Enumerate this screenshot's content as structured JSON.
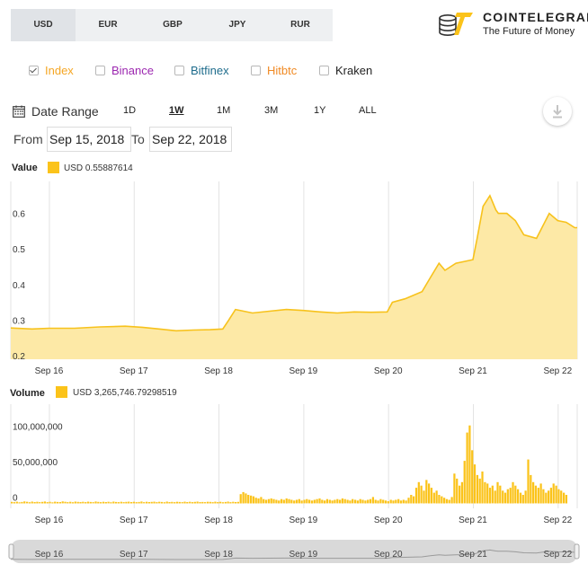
{
  "currency_tabs": [
    {
      "label": "USD",
      "active": true
    },
    {
      "label": "EUR",
      "active": false
    },
    {
      "label": "GBP",
      "active": false
    },
    {
      "label": "JPY",
      "active": false
    },
    {
      "label": "RUR",
      "active": false
    }
  ],
  "brand": {
    "name": "COINTELEGRAPH",
    "tagline": "The Future of Money"
  },
  "exchanges": [
    {
      "label": "Index",
      "checked": true,
      "color": "#f5a623"
    },
    {
      "label": "Binance",
      "checked": false,
      "color": "#9c27b0"
    },
    {
      "label": "Bitfinex",
      "checked": false,
      "color": "#1e6c8c"
    },
    {
      "label": "Hitbtc",
      "checked": false,
      "color": "#f08a24"
    },
    {
      "label": "Kraken",
      "checked": false,
      "color": "#222222"
    }
  ],
  "date_range": {
    "label": "Date Range",
    "buttons": [
      {
        "label": "1D",
        "active": false
      },
      {
        "label": "1W",
        "active": true
      },
      {
        "label": "1M",
        "active": false
      },
      {
        "label": "3M",
        "active": false
      },
      {
        "label": "1Y",
        "active": false
      },
      {
        "label": "ALL",
        "active": false
      }
    ],
    "from_label": "From",
    "from_value": "Sep 15, 2018",
    "to_label": "To",
    "to_value": "Sep 22, 2018"
  },
  "colors": {
    "accent": "#fbc31a",
    "area_fill": "#fde9a6",
    "line": "#f7c21c",
    "grid": "#e3e3e3"
  },
  "chart_data": [
    {
      "type": "area",
      "legend_title": "Value",
      "legend_text": "USD  0.55887614",
      "x_ticks": [
        "Sep 16",
        "Sep 17",
        "Sep 18",
        "Sep 19",
        "Sep 20",
        "Sep 21",
        "Sep 22"
      ],
      "x_tick_pos": [
        1,
        2,
        3,
        4,
        5,
        6,
        7
      ],
      "y_ticks": [
        "0.2",
        "0.3",
        "0.4",
        "0.5",
        "0.6"
      ],
      "y_tick_vals": [
        0.2,
        0.3,
        0.4,
        0.5,
        0.6
      ],
      "ylim": [
        0.19,
        0.69
      ],
      "xlim": [
        0.55,
        7.23
      ],
      "x": [
        0.55,
        0.8,
        1.0,
        1.3,
        1.6,
        1.9,
        2.1,
        2.3,
        2.5,
        2.7,
        2.9,
        3.05,
        3.12,
        3.2,
        3.4,
        3.6,
        3.8,
        4.0,
        4.2,
        4.4,
        4.6,
        4.8,
        4.99,
        5.05,
        5.2,
        5.4,
        5.5,
        5.6,
        5.67,
        5.8,
        5.9,
        6.0,
        6.05,
        6.12,
        6.2,
        6.27,
        6.3,
        6.4,
        6.5,
        6.6,
        6.75,
        6.9,
        7.0,
        7.1,
        7.2,
        7.23
      ],
      "y": [
        0.278,
        0.275,
        0.277,
        0.277,
        0.281,
        0.283,
        0.28,
        0.275,
        0.27,
        0.272,
        0.273,
        0.275,
        0.3,
        0.33,
        0.32,
        0.325,
        0.33,
        0.327,
        0.323,
        0.32,
        0.323,
        0.322,
        0.323,
        0.35,
        0.36,
        0.38,
        0.42,
        0.46,
        0.44,
        0.46,
        0.465,
        0.47,
        0.53,
        0.62,
        0.65,
        0.61,
        0.6,
        0.6,
        0.58,
        0.54,
        0.53,
        0.6,
        0.58,
        0.575,
        0.56,
        0.56
      ]
    },
    {
      "type": "bar",
      "legend_title": "Volume",
      "legend_text": "USD  3,265,746.79298519",
      "x_ticks": [
        "Sep 16",
        "Sep 17",
        "Sep 18",
        "Sep 19",
        "Sep 20",
        "Sep 21",
        "Sep 22"
      ],
      "x_tick_pos": [
        1,
        2,
        3,
        4,
        5,
        6,
        7
      ],
      "y_ticks": [
        "0",
        "50,000,000",
        "100,000,000"
      ],
      "y_tick_vals": [
        0,
        50000000,
        100000000
      ],
      "ylim": [
        -7000000,
        140000000
      ],
      "xlim": [
        0.55,
        7.23
      ],
      "x_start": 0.55,
      "x_step": 0.03,
      "values": [
        2.1,
        1.8,
        2.4,
        1.5,
        2.0,
        2.8,
        2.2,
        1.6,
        2.5,
        1.9,
        2.3,
        1.7,
        2.1,
        2.6,
        1.8,
        2.2,
        1.5,
        2.4,
        2.0,
        1.9,
        2.7,
        2.2,
        1.8,
        2.3,
        1.6,
        2.5,
        2.1,
        1.9,
        2.2,
        1.8,
        2.4,
        2.0,
        1.7,
        2.6,
        2.1,
        1.8,
        2.3,
        1.9,
        2.2,
        1.6,
        2.5,
        2.0,
        1.8,
        2.3,
        1.7,
        2.1,
        2.4,
        1.9,
        2.2,
        1.8,
        2.0,
        2.6,
        1.7,
        2.3,
        1.9,
        2.1,
        2.4,
        1.8,
        2.2,
        2.0,
        1.6,
        2.5,
        1.9,
        2.1,
        1.8,
        2.3,
        2.0,
        1.7,
        2.4,
        1.9,
        2.2,
        1.8,
        2.1,
        2.5,
        1.9,
        2.0,
        1.7,
        2.3,
        2.1,
        1.8,
        2.4,
        1.9,
        2.2,
        1.6,
        2.0,
        2.5,
        1.8,
        2.2,
        1.9,
        2.1,
        13,
        16,
        14,
        12,
        11,
        10,
        8,
        7,
        9,
        6,
        5,
        6,
        7,
        6,
        5,
        4,
        6,
        5,
        7,
        6,
        5,
        4,
        5,
        6,
        4,
        5,
        6,
        5,
        4,
        5,
        6,
        7,
        5,
        4,
        6,
        5,
        4,
        5,
        6,
        5,
        7,
        6,
        5,
        4,
        6,
        5,
        4,
        6,
        5,
        4,
        5,
        6,
        9,
        5,
        4,
        6,
        5,
        4,
        3,
        5,
        4,
        5,
        6,
        4,
        5,
        4,
        8,
        12,
        10,
        22,
        30,
        25,
        18,
        33,
        28,
        22,
        15,
        18,
        12,
        10,
        8,
        6,
        5,
        9,
        42,
        35,
        25,
        30,
        60,
        100,
        110,
        75,
        55,
        40,
        35,
        45,
        30,
        28,
        22,
        25,
        18,
        30,
        25,
        18,
        15,
        20,
        22,
        30,
        25,
        20,
        15,
        12,
        18,
        62,
        40,
        30,
        25,
        22,
        28,
        20,
        15,
        18,
        22,
        28,
        25,
        20,
        18,
        15,
        12
      ],
      "value_scale": 1000000
    }
  ],
  "navigator": {
    "labels": [
      "Sep 16",
      "Sep 17",
      "Sep 18",
      "Sep 19",
      "Sep 20",
      "Sep 21",
      "Sep 22"
    ]
  }
}
